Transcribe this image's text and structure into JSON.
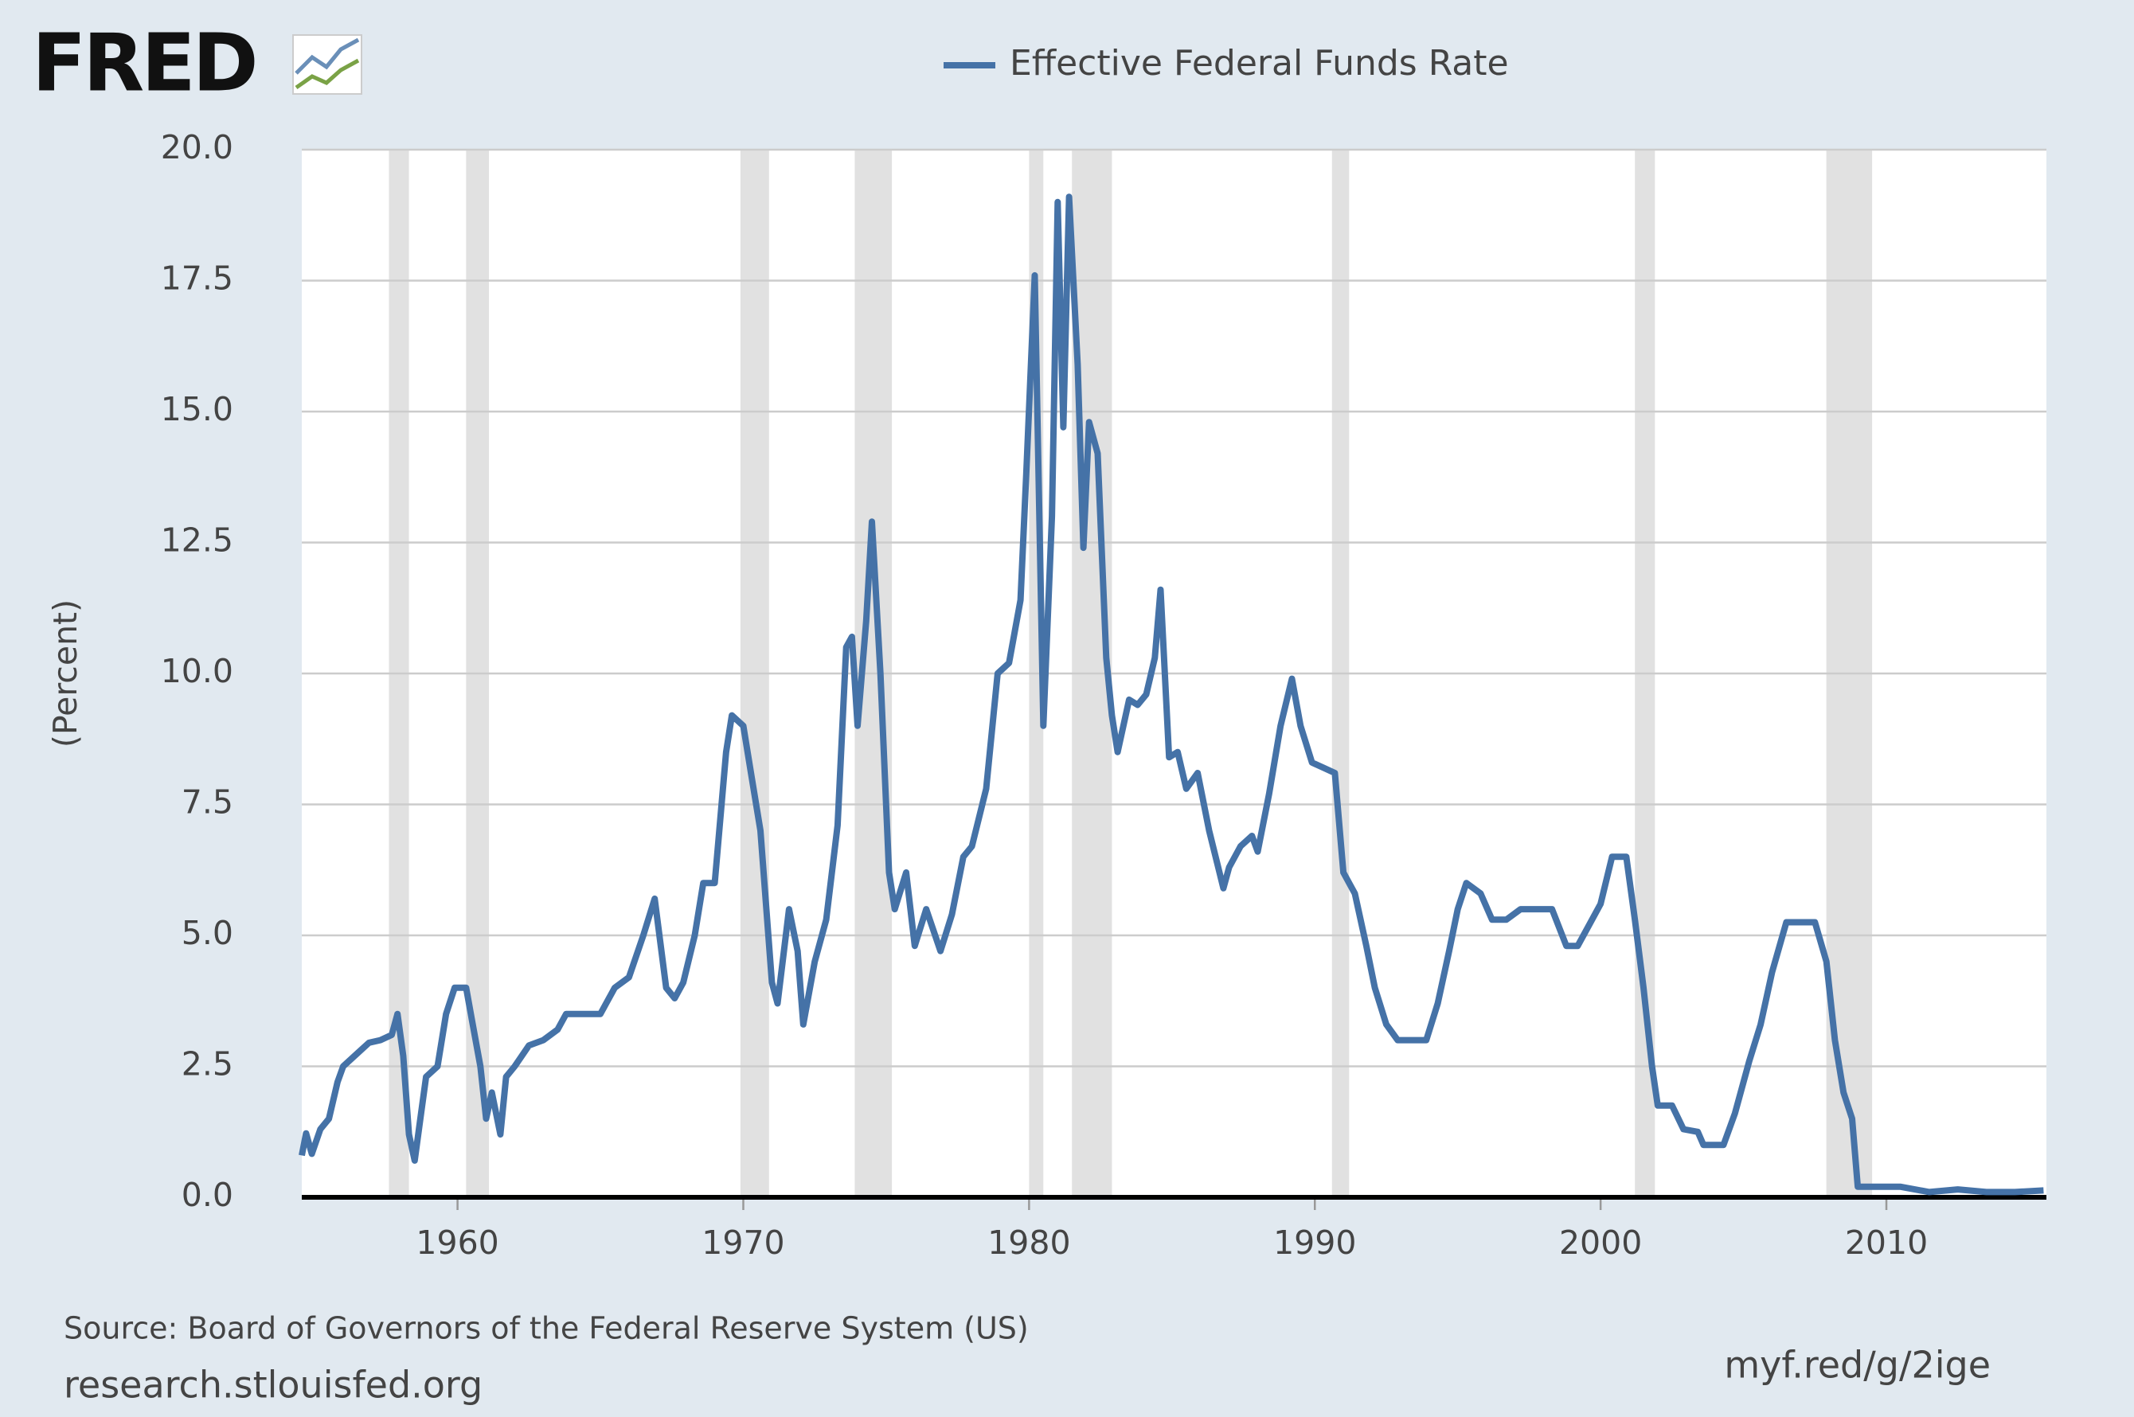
{
  "logo": "FRED",
  "chart_data": {
    "type": "line",
    "y_label": "(Percent)",
    "xlim": [
      1954.55,
      2015.6
    ],
    "ylim": [
      0,
      20
    ],
    "xticks": [
      1960,
      1970,
      1980,
      1990,
      2000,
      2010
    ],
    "yticks": [
      {
        "value": 0,
        "label": "0.0"
      },
      2.5,
      {
        "value": 5,
        "label": "5.0"
      },
      7.5,
      {
        "value": 10,
        "label": "10.0"
      },
      12.5,
      {
        "value": 15,
        "label": "15.0"
      },
      17.5,
      {
        "value": 20,
        "label": "20.0"
      }
    ],
    "grid": true,
    "recession_color": "#e1e1e1",
    "recessions": [
      [
        1957.6,
        1958.3
      ],
      [
        1960.3,
        1961.1
      ],
      [
        1969.9,
        1970.9
      ],
      [
        1973.9,
        1975.2
      ],
      [
        1980.0,
        1980.5
      ],
      [
        1981.5,
        1982.9
      ],
      [
        1990.6,
        1991.2
      ],
      [
        2001.2,
        2001.9
      ],
      [
        2007.9,
        2009.5
      ]
    ],
    "x": [
      1954.55,
      1954.7,
      1954.9,
      1955.2,
      1955.5,
      1955.8,
      1956.0,
      1956.5,
      1956.9,
      1957.3,
      1957.7,
      1957.9,
      1958.1,
      1958.3,
      1958.5,
      1958.7,
      1958.9,
      1959.3,
      1959.6,
      1959.9,
      1960.3,
      1960.5,
      1960.8,
      1961.0,
      1961.2,
      1961.5,
      1961.7,
      1962.0,
      1962.5,
      1963.0,
      1963.5,
      1963.8,
      1964.5,
      1965.0,
      1965.5,
      1966.0,
      1966.5,
      1966.9,
      1967.3,
      1967.6,
      1967.9,
      1968.3,
      1968.6,
      1969.0,
      1969.4,
      1969.6,
      1970.0,
      1970.3,
      1970.6,
      1971.0,
      1971.2,
      1971.6,
      1971.9,
      1972.1,
      1972.5,
      1972.9,
      1973.3,
      1973.6,
      1973.8,
      1974.0,
      1974.3,
      1974.5,
      1974.8,
      1975.1,
      1975.3,
      1975.7,
      1976.0,
      1976.4,
      1976.9,
      1977.3,
      1977.7,
      1978.0,
      1978.5,
      1978.9,
      1979.3,
      1979.7,
      1979.9,
      1980.2,
      1980.5,
      1980.8,
      1981.0,
      1981.2,
      1981.4,
      1981.7,
      1981.9,
      1982.1,
      1982.4,
      1982.7,
      1982.9,
      1983.1,
      1983.5,
      1983.8,
      1984.1,
      1984.4,
      1984.6,
      1984.9,
      1985.2,
      1985.5,
      1985.9,
      1986.3,
      1986.8,
      1987.0,
      1987.4,
      1987.8,
      1988.0,
      1988.4,
      1988.8,
      1989.2,
      1989.5,
      1989.9,
      1990.3,
      1990.7,
      1991.0,
      1991.4,
      1991.8,
      1992.1,
      1992.5,
      1992.9,
      1993.5,
      1993.9,
      1994.3,
      1994.7,
      1995.0,
      1995.3,
      1995.8,
      1996.2,
      1996.7,
      1997.2,
      1997.7,
      1998.3,
      1998.8,
      1999.2,
      1999.6,
      2000.0,
      2000.4,
      2000.9,
      2001.2,
      2001.5,
      2001.8,
      2002.0,
      2002.5,
      2002.9,
      2003.4,
      2003.6,
      2004.3,
      2004.7,
      2005.2,
      2005.6,
      2006.0,
      2006.5,
      2007.5,
      2007.9,
      2008.2,
      2008.5,
      2008.8,
      2009.0,
      2009.5,
      2010.5,
      2011.5,
      2012.5,
      2013.5,
      2014.5,
      2015.5
    ],
    "series": [
      {
        "name": "Effective Federal Funds Rate",
        "color": "#4572a7",
        "values": [
          0.8,
          1.22,
          0.83,
          1.3,
          1.5,
          2.2,
          2.5,
          2.75,
          2.95,
          3.0,
          3.1,
          3.5,
          2.7,
          1.2,
          0.7,
          1.5,
          2.3,
          2.5,
          3.5,
          4.0,
          4.0,
          3.4,
          2.5,
          1.5,
          2.0,
          1.2,
          2.3,
          2.5,
          2.9,
          3.0,
          3.2,
          3.5,
          3.5,
          3.5,
          4.0,
          4.2,
          5.0,
          5.7,
          4.0,
          3.8,
          4.1,
          5.0,
          6.0,
          6.0,
          8.5,
          9.2,
          9.0,
          8.0,
          7.0,
          4.1,
          3.7,
          5.5,
          4.7,
          3.3,
          4.5,
          5.3,
          7.1,
          10.5,
          10.7,
          9.0,
          11.0,
          12.9,
          10.0,
          6.2,
          5.5,
          6.2,
          4.8,
          5.5,
          4.7,
          5.4,
          6.5,
          6.7,
          7.8,
          10.0,
          10.2,
          11.4,
          13.8,
          17.6,
          9.0,
          13.0,
          19.0,
          14.7,
          19.1,
          15.9,
          12.4,
          14.8,
          14.2,
          10.3,
          9.2,
          8.5,
          9.5,
          9.4,
          9.6,
          10.3,
          11.6,
          8.4,
          8.5,
          7.8,
          8.1,
          7.0,
          5.9,
          6.3,
          6.7,
          6.9,
          6.6,
          7.7,
          9.0,
          9.9,
          9.0,
          8.3,
          8.2,
          8.1,
          6.2,
          5.8,
          4.8,
          4.0,
          3.3,
          3.0,
          3.0,
          3.0,
          3.7,
          4.7,
          5.5,
          6.0,
          5.8,
          5.3,
          5.3,
          5.5,
          5.5,
          5.5,
          4.8,
          4.8,
          5.2,
          5.6,
          6.5,
          6.5,
          5.3,
          4.0,
          2.5,
          1.75,
          1.75,
          1.3,
          1.25,
          1.0,
          1.0,
          1.6,
          2.6,
          3.3,
          4.3,
          5.25,
          5.25,
          4.5,
          3.0,
          2.0,
          1.5,
          0.2,
          0.2,
          0.2,
          0.1,
          0.15,
          0.1,
          0.1,
          0.13
        ]
      }
    ]
  },
  "source": "Source: Board of Governors of the Federal Reserve System (US)",
  "site": "research.stlouisfed.org",
  "short_link": "myf.red/g/2ige"
}
